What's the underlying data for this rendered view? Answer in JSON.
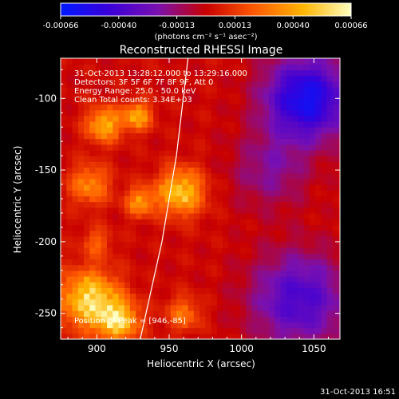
{
  "colorbar": {
    "ticks": [
      "-0.00066",
      "-0.00040",
      "-0.00013",
      "0.00013",
      "0.00040",
      "0.00066"
    ],
    "unit_label": "(photons cm⁻² s⁻¹ asec⁻²)",
    "stops": [
      "#0018ff",
      "#3a00d8",
      "#7a10b0",
      "#c80000",
      "#ff5a00",
      "#ffb400",
      "#ffffc0"
    ]
  },
  "chart_data": {
    "type": "heatmap",
    "title": "Reconstructed RHESSI Image",
    "xlabel": "Heliocentric X (arcsec)",
    "ylabel": "Heliocentric Y (arcsec)",
    "xlim": [
      875,
      1068
    ],
    "ylim": [
      -268,
      -72
    ],
    "x_ticks": [
      900,
      950,
      1000,
      1050
    ],
    "y_ticks": [
      -100,
      -150,
      -200,
      -250
    ],
    "limb_curve": [
      [
        930,
        -268
      ],
      [
        945,
        -200
      ],
      [
        955,
        -140
      ],
      [
        963,
        -72
      ]
    ],
    "peak_position": [
      946,
      -85
    ],
    "annotations": [
      "31-Oct-2013 13:28:12.000 to 13:29:16.000",
      "Detectors: 3F 5F 6F 7F 8F 9F, Att 0",
      "Energy Range: 25.0 - 50.0 keV",
      "Clean     Total counts: 3.34E+03"
    ],
    "peak_label": "Position of Peak = [946,-85]",
    "hot_sources": [
      {
        "x": 905,
        "y": -118,
        "r": 12,
        "v": 0.75
      },
      {
        "x": 928,
        "y": -112,
        "r": 10,
        "v": 0.7
      },
      {
        "x": 958,
        "y": -165,
        "r": 16,
        "v": 0.85
      },
      {
        "x": 930,
        "y": -172,
        "r": 10,
        "v": 0.6
      },
      {
        "x": 895,
        "y": -160,
        "r": 14,
        "v": 0.55
      },
      {
        "x": 895,
        "y": -240,
        "r": 20,
        "v": 0.95
      },
      {
        "x": 915,
        "y": -255,
        "r": 14,
        "v": 0.85
      },
      {
        "x": 960,
        "y": -250,
        "r": 12,
        "v": 0.45
      },
      {
        "x": 900,
        "y": -200,
        "r": 10,
        "v": 0.35
      }
    ],
    "cold_sources": [
      {
        "x": 1045,
        "y": -100,
        "r": 22,
        "v": 0.9
      },
      {
        "x": 1040,
        "y": -240,
        "r": 25,
        "v": 0.6
      },
      {
        "x": 1020,
        "y": -150,
        "r": 20,
        "v": 0.3
      }
    ]
  },
  "footer_timestamp": "31-Oct-2013 16:51"
}
